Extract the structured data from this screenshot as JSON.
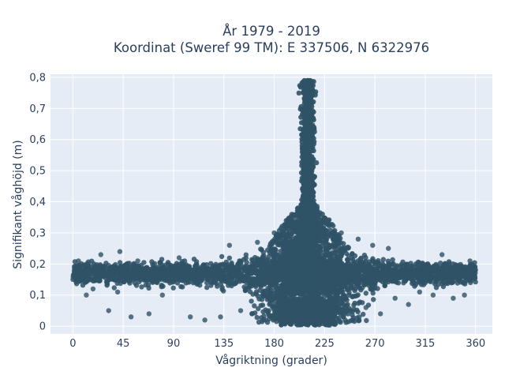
{
  "chart_data": {
    "type": "scatter",
    "title_line1": "År 1979 - 2019",
    "title_line2": "Koordinat (Sweref 99 TM): E 337506, N 6322976",
    "xlabel": "Vågriktning (grader)",
    "ylabel": "Signifikant våghöjd (m)",
    "xlim": [
      -20,
      375
    ],
    "ylim": [
      -0.025,
      0.81
    ],
    "xticks": [
      0,
      45,
      90,
      135,
      180,
      225,
      270,
      315,
      360
    ],
    "xtick_labels": [
      "0",
      "45",
      "90",
      "135",
      "180",
      "225",
      "270",
      "315",
      "360"
    ],
    "yticks": [
      0,
      0.1,
      0.2,
      0.3,
      0.4,
      0.5,
      0.6,
      0.7,
      0.8
    ],
    "ytick_labels": [
      "0",
      "0,1",
      "0,2",
      "0,3",
      "0,4",
      "0,5",
      "0,6",
      "0,7",
      "0,8"
    ],
    "grid": true,
    "marker_color": "#2f5266",
    "background_color": "#e5ecf6",
    "band": {
      "x_range": [
        0,
        360
      ],
      "y_range": [
        0.14,
        0.2
      ],
      "description_points": "dense band of points across all directions"
    },
    "peak": {
      "x_center": 210,
      "x_range": [
        200,
        220
      ],
      "y_max": 0.79
    },
    "outliers": [
      {
        "x": 5,
        "y": 0.21
      },
      {
        "x": 12,
        "y": 0.1
      },
      {
        "x": 18,
        "y": 0.12
      },
      {
        "x": 25,
        "y": 0.23
      },
      {
        "x": 32,
        "y": 0.05
      },
      {
        "x": 40,
        "y": 0.11
      },
      {
        "x": 42,
        "y": 0.24
      },
      {
        "x": 52,
        "y": 0.03
      },
      {
        "x": 58,
        "y": 0.21
      },
      {
        "x": 68,
        "y": 0.04
      },
      {
        "x": 80,
        "y": 0.1
      },
      {
        "x": 95,
        "y": 0.22
      },
      {
        "x": 105,
        "y": 0.03
      },
      {
        "x": 118,
        "y": 0.02
      },
      {
        "x": 132,
        "y": 0.03
      },
      {
        "x": 140,
        "y": 0.26
      },
      {
        "x": 150,
        "y": 0.05
      },
      {
        "x": 160,
        "y": 0.04
      },
      {
        "x": 165,
        "y": 0.27
      },
      {
        "x": 172,
        "y": 0.02
      },
      {
        "x": 180,
        "y": 0.3
      },
      {
        "x": 190,
        "y": 0.04
      },
      {
        "x": 240,
        "y": 0.3
      },
      {
        "x": 245,
        "y": 0.05
      },
      {
        "x": 255,
        "y": 0.28
      },
      {
        "x": 262,
        "y": 0.06
      },
      {
        "x": 268,
        "y": 0.26
      },
      {
        "x": 275,
        "y": 0.04
      },
      {
        "x": 282,
        "y": 0.25
      },
      {
        "x": 288,
        "y": 0.09
      },
      {
        "x": 300,
        "y": 0.07
      },
      {
        "x": 310,
        "y": 0.11
      },
      {
        "x": 322,
        "y": 0.1
      },
      {
        "x": 330,
        "y": 0.23
      },
      {
        "x": 340,
        "y": 0.09
      },
      {
        "x": 350,
        "y": 0.1
      },
      {
        "x": 355,
        "y": 0.21
      }
    ]
  }
}
